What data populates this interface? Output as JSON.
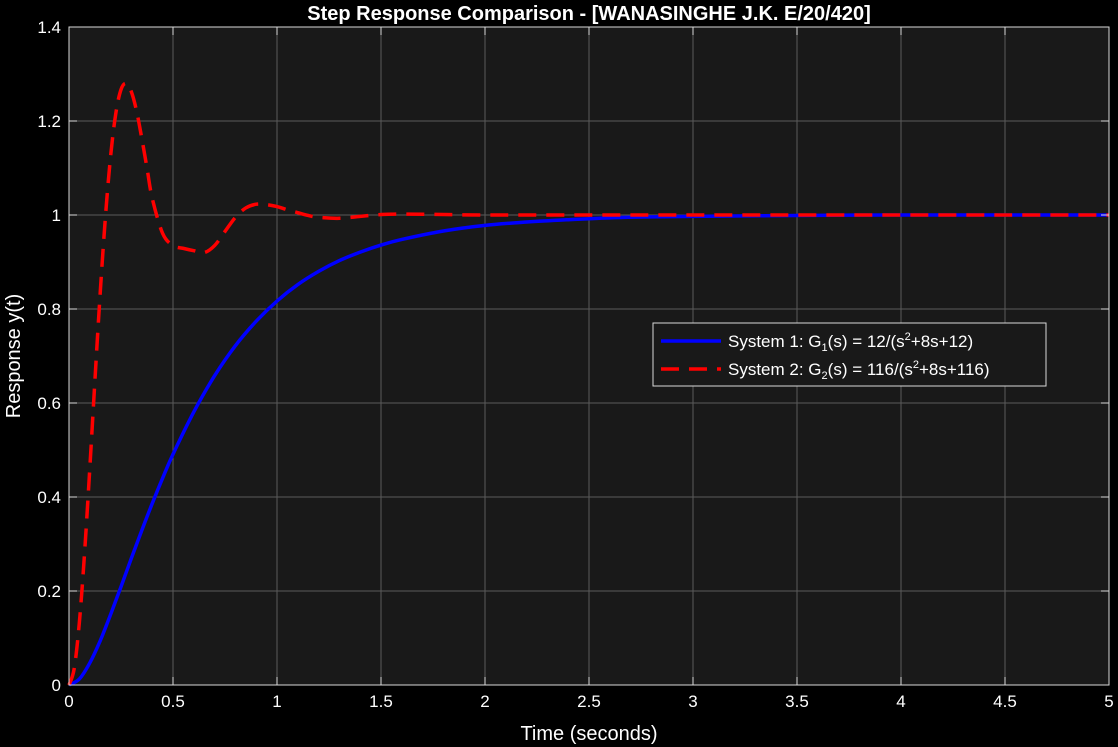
{
  "chart_data": {
    "type": "line",
    "title": "Step Response Comparison - [WANASINGHE J.K. E/20/420]",
    "xlabel": "Time (seconds)",
    "ylabel": "Response y(t)",
    "xlim": [
      0,
      5
    ],
    "ylim": [
      0,
      1.4
    ],
    "x_ticks": [
      0,
      0.5,
      1,
      1.5,
      2,
      2.5,
      3,
      3.5,
      4,
      4.5,
      5
    ],
    "y_ticks": [
      0,
      0.2,
      0.4,
      0.6,
      0.8,
      1,
      1.2,
      1.4
    ],
    "x_tick_labels": [
      "0",
      "0.5",
      "1",
      "1.5",
      "2",
      "2.5",
      "3",
      "3.5",
      "4",
      "4.5",
      "5"
    ],
    "y_tick_labels": [
      "0",
      "0.2",
      "0.4",
      "0.6",
      "0.8",
      "1",
      "1.2",
      "1.4"
    ],
    "grid": true,
    "legend_position": "center-right",
    "series": [
      {
        "name": "System 1: G1(s) = 12/(s2+8s+12)",
        "legend": {
          "prefix": "System  1:  G",
          "sub": "1",
          "mid": "(s)  =  12/(s",
          "sup": "2",
          "suffix": "+8s+12)"
        },
        "color": "#0000ff",
        "style": "solid",
        "x": [
          0,
          0.05,
          0.1,
          0.15,
          0.2,
          0.25,
          0.3,
          0.35,
          0.4,
          0.45,
          0.5,
          0.6,
          0.7,
          0.8,
          0.9,
          1.0,
          1.1,
          1.2,
          1.3,
          1.4,
          1.5,
          1.6,
          1.8,
          2.0,
          2.2,
          2.4,
          2.6,
          2.8,
          3.0,
          3.5,
          4.0,
          4.5,
          5.0
        ],
        "y": [
          0,
          0.013,
          0.047,
          0.094,
          0.15,
          0.209,
          0.27,
          0.329,
          0.386,
          0.44,
          0.491,
          0.581,
          0.658,
          0.722,
          0.774,
          0.817,
          0.852,
          0.88,
          0.903,
          0.921,
          0.936,
          0.948,
          0.966,
          0.978,
          0.985,
          0.99,
          0.994,
          0.996,
          0.997,
          0.999,
          1.0,
          1.0,
          1.0
        ]
      },
      {
        "name": "System 2: G2(s) = 116/(s2+8s+116)",
        "legend": {
          "prefix": "System  2:  G",
          "sub": "2",
          "mid": "(s)  =  116/(s",
          "sup": "2",
          "suffix": "+8s+116)"
        },
        "color": "#ff0000",
        "style": "dashed",
        "x": [
          0,
          0.025,
          0.05,
          0.075,
          0.1,
          0.125,
          0.15,
          0.175,
          0.2,
          0.225,
          0.25,
          0.275,
          0.3,
          0.325,
          0.35,
          0.375,
          0.4,
          0.45,
          0.5,
          0.55,
          0.6,
          0.65,
          0.7,
          0.75,
          0.8,
          0.85,
          0.9,
          0.95,
          1.0,
          1.05,
          1.1,
          1.15,
          1.2,
          1.3,
          1.4,
          1.5,
          1.6,
          1.8,
          2.0,
          2.5,
          3.0,
          3.5,
          4.0,
          4.5,
          5.0
        ],
        "y": [
          0,
          0.035,
          0.134,
          0.282,
          0.461,
          0.651,
          0.834,
          0.995,
          1.125,
          1.216,
          1.267,
          1.28,
          1.262,
          1.221,
          1.163,
          1.1,
          1.036,
          0.961,
          0.935,
          0.929,
          0.924,
          0.92,
          0.935,
          0.965,
          0.995,
          1.015,
          1.023,
          1.022,
          1.018,
          1.011,
          1.005,
          0.999,
          0.995,
          0.993,
          0.997,
          1.001,
          1.002,
          1.001,
          1.0,
          1.0,
          1.0,
          1.0,
          1.0,
          1.0,
          1.0
        ]
      }
    ]
  }
}
